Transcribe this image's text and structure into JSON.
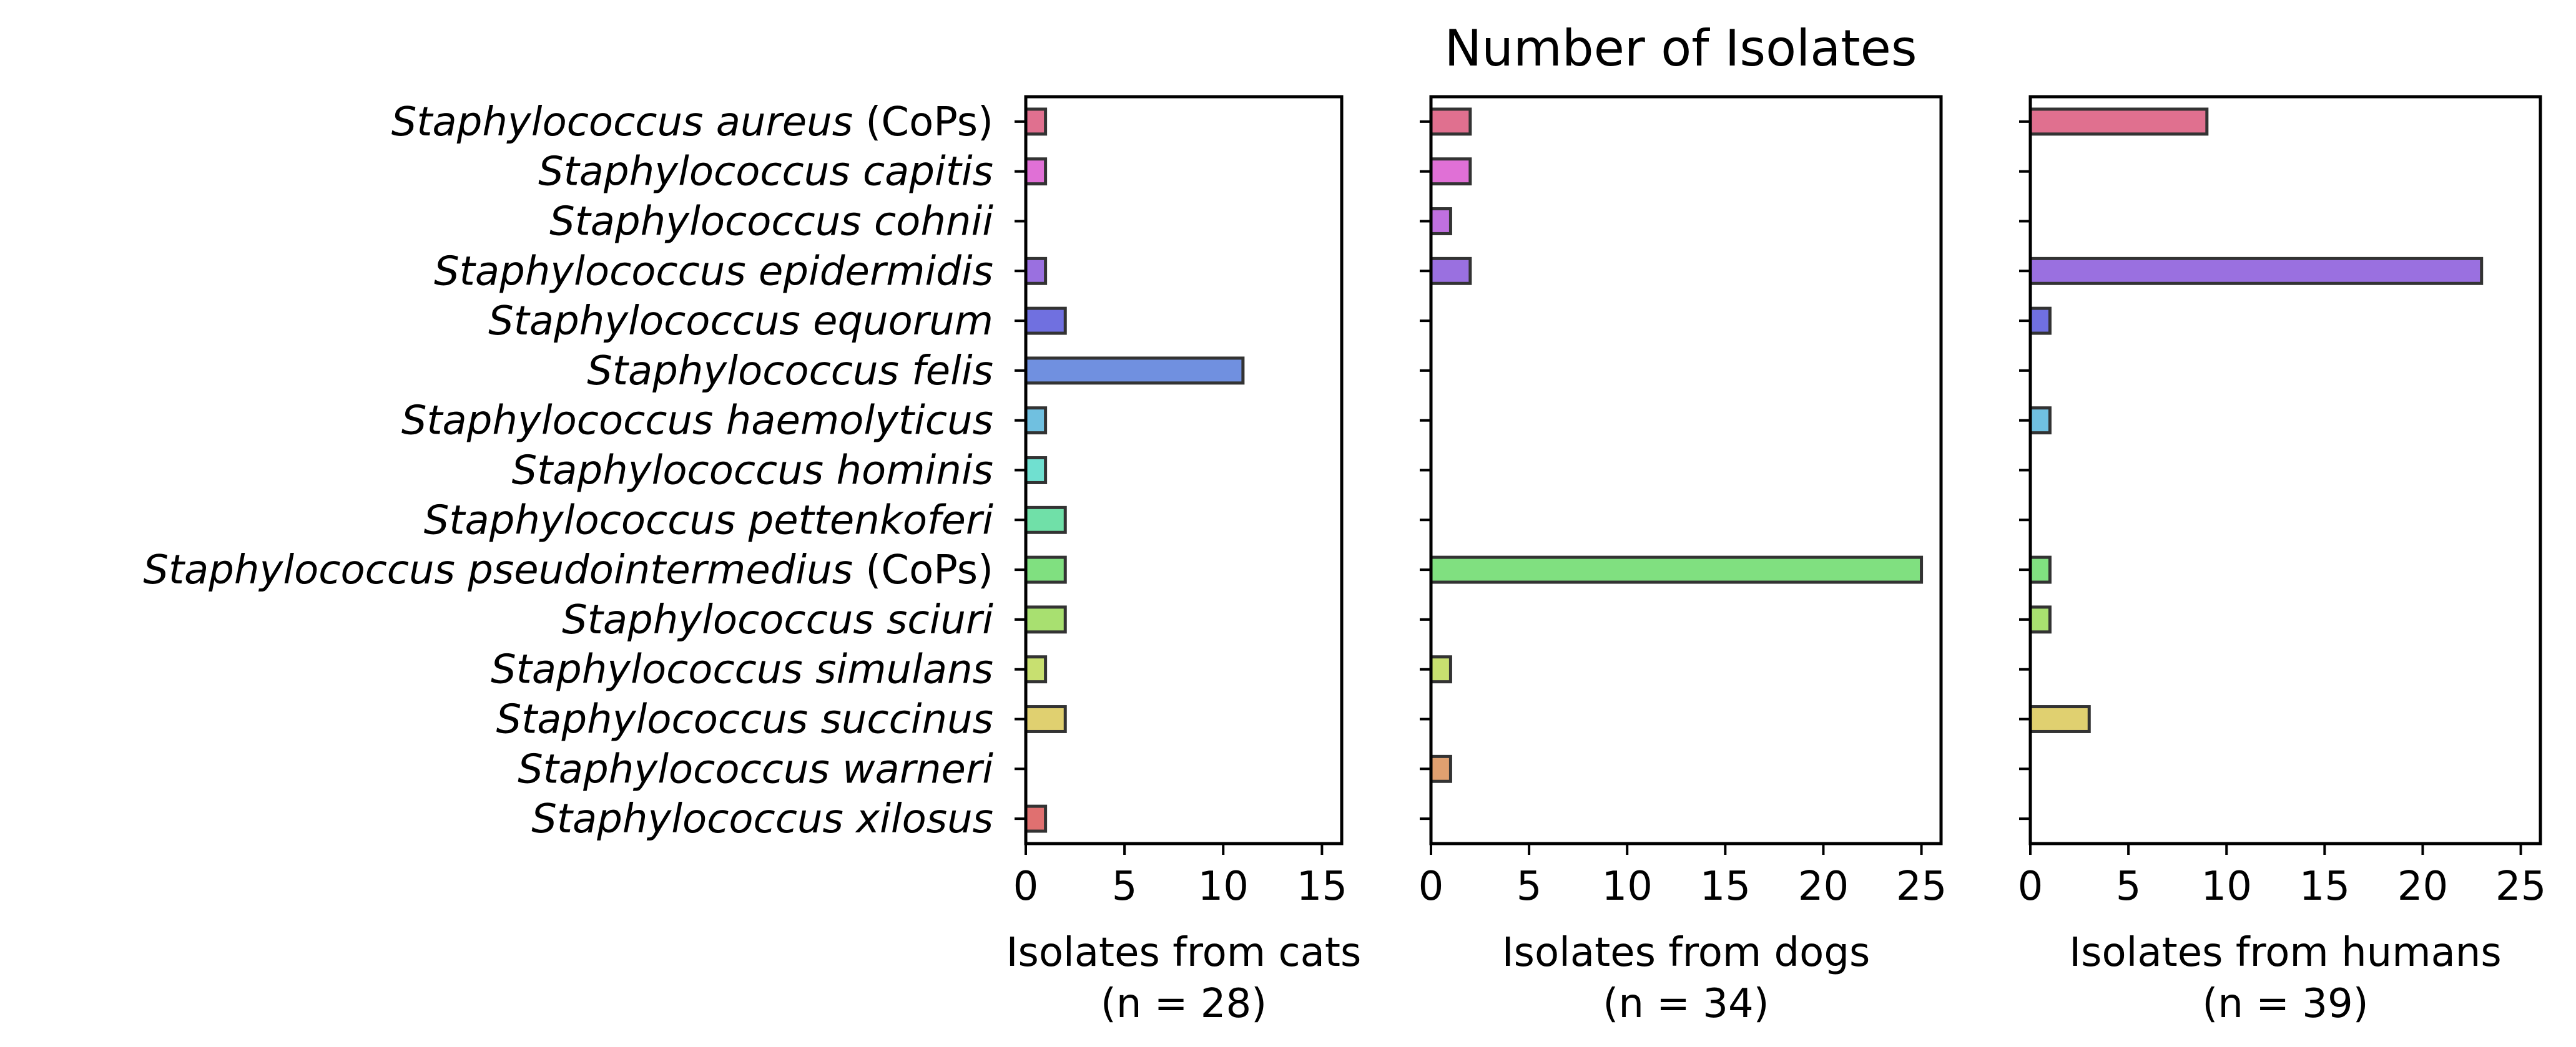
{
  "chart_data": {
    "type": "bar",
    "orientation": "horizontal",
    "title": "Number of Isolates",
    "categories": [
      {
        "italic": "Staphylococcus aureus",
        "suffix": "(CoPs)"
      },
      {
        "italic": "Staphylococcus capitis",
        "suffix": ""
      },
      {
        "italic": "Staphylococcus cohnii",
        "suffix": ""
      },
      {
        "italic": "Staphylococcus epidermidis",
        "suffix": ""
      },
      {
        "italic": "Staphylococcus equorum",
        "suffix": ""
      },
      {
        "italic": "Staphylococcus felis",
        "suffix": ""
      },
      {
        "italic": "Staphylococcus haemolyticus",
        "suffix": ""
      },
      {
        "italic": "Staphylococcus hominis",
        "suffix": ""
      },
      {
        "italic": "Staphylococcus pettenkoferi",
        "suffix": ""
      },
      {
        "italic": "Staphylococcus pseudointermedius",
        "suffix": "(CoPs)"
      },
      {
        "italic": "Staphylococcus sciuri",
        "suffix": ""
      },
      {
        "italic": "Staphylococcus simulans",
        "suffix": ""
      },
      {
        "italic": "Staphylococcus succinus",
        "suffix": ""
      },
      {
        "italic": "Staphylococcus warneri",
        "suffix": ""
      },
      {
        "italic": "Staphylococcus xilosus",
        "suffix": ""
      }
    ],
    "colors": [
      "#e0708f",
      "#e070d6",
      "#c070e0",
      "#9a70e0",
      "#7070e0",
      "#7090e0",
      "#70c0e0",
      "#70e0d0",
      "#70e0a8",
      "#80e080",
      "#a8e070",
      "#c8e070",
      "#e0d070",
      "#e0a070",
      "#e07070"
    ],
    "panels": [
      {
        "name": "cats",
        "xlabel": "Isolates from cats",
        "nlabel": "(n = 28)",
        "xlim": [
          0,
          16
        ],
        "ticks": [
          0,
          5,
          10,
          15
        ],
        "values": [
          1,
          1,
          0,
          1,
          2,
          11,
          1,
          1,
          2,
          2,
          2,
          1,
          2,
          0,
          1
        ]
      },
      {
        "name": "dogs",
        "xlabel": "Isolates from dogs",
        "nlabel": "(n = 34)",
        "xlim": [
          0,
          26
        ],
        "ticks": [
          0,
          5,
          10,
          15,
          20,
          25
        ],
        "values": [
          2,
          2,
          1,
          2,
          0,
          0,
          0,
          0,
          0,
          25,
          0,
          1,
          0,
          1,
          0
        ]
      },
      {
        "name": "humans",
        "xlabel": "Isolates from humans",
        "nlabel": "(n = 39)",
        "xlim": [
          0,
          26
        ],
        "ticks": [
          0,
          5,
          10,
          15,
          20,
          25
        ],
        "values": [
          9,
          0,
          0,
          23,
          1,
          0,
          1,
          0,
          0,
          1,
          1,
          0,
          3,
          0,
          0
        ]
      }
    ]
  }
}
